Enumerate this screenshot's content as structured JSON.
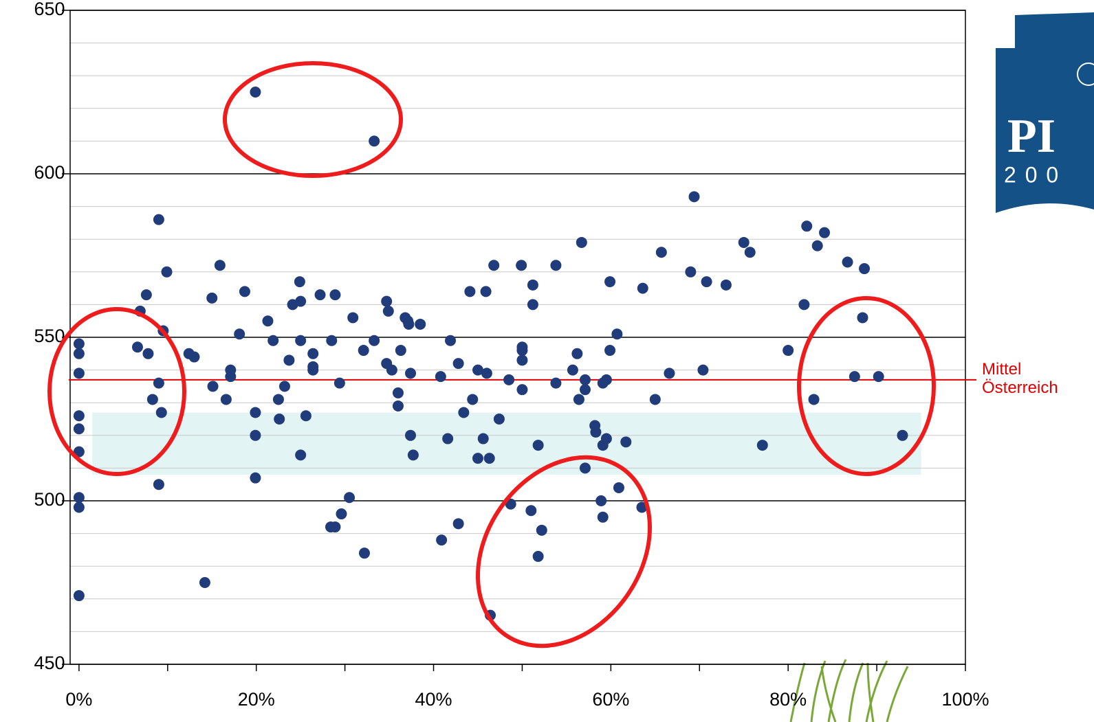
{
  "chart_data": {
    "type": "scatter",
    "x": [
      19.9,
      33.3,
      0,
      0,
      0,
      0,
      0,
      0,
      0,
      0,
      0,
      6.9,
      6.6,
      7.6,
      7.8,
      8.3,
      9.0,
      9.0,
      9.3,
      9.5,
      9.9,
      9.0,
      12.4,
      13.0,
      14.2,
      15.0,
      15.1,
      15.9,
      16.6,
      17.1,
      17.1,
      18.1,
      18.7,
      19.9,
      19.9,
      19.9,
      21.3,
      21.9,
      22.5,
      22.6,
      23.2,
      23.7,
      24.1,
      24.9,
      25.0,
      25.0,
      25.0,
      25.6,
      26.4,
      26.4,
      26.4,
      27.2,
      28.5,
      28.9,
      29.4,
      28.4,
      28.9,
      29.6,
      30.5,
      30.9,
      32.1,
      32.2,
      33.3,
      34.7,
      34.7,
      34.9,
      35.3,
      36.0,
      36.0,
      36.3,
      36.8,
      37.1,
      37.2,
      37.4,
      37.4,
      37.7,
      38.5,
      40.8,
      40.9,
      41.6,
      41.9,
      42.8,
      42.8,
      43.4,
      44.1,
      44.4,
      45.0,
      45.0,
      45.6,
      45.9,
      46.0,
      46.3,
      46.4,
      46.8,
      47.4,
      48.5,
      48.7,
      49.9,
      50.0,
      50.0,
      50.0,
      50.0,
      51.0,
      51.2,
      51.2,
      51.8,
      51.8,
      52.2,
      53.8,
      53.8,
      55.7,
      56.2,
      56.4,
      56.7,
      57.1,
      57.1,
      57.1,
      58.2,
      58.3,
      58.9,
      59.1,
      59.1,
      59.1,
      59.5,
      59.5,
      59.9,
      59.9,
      60.7,
      60.9,
      61.7,
      63.6,
      63.5,
      65.0,
      65.7,
      66.6,
      69.0,
      69.4,
      70.4,
      70.8,
      73.0,
      75.0,
      75.7,
      77.1,
      80.0,
      81.8,
      82.1,
      82.9,
      83.3,
      84.1,
      86.7,
      87.5,
      88.4,
      88.6,
      90.2,
      92.9
    ],
    "values": [
      625,
      610,
      548,
      545,
      539,
      526,
      522,
      515,
      501,
      498,
      471,
      558,
      547,
      563,
      545,
      531,
      586,
      536,
      527,
      552,
      570,
      505,
      545,
      544,
      475,
      562,
      535,
      572,
      531,
      540,
      538,
      551,
      564,
      527,
      520,
      507,
      555,
      549,
      531,
      525,
      535,
      543,
      560,
      567,
      561,
      549,
      514,
      526,
      545,
      541,
      540,
      563,
      549,
      563,
      536,
      492,
      492,
      496,
      501,
      556,
      546,
      484,
      549,
      561,
      542,
      558,
      540,
      533,
      529,
      546,
      556,
      555,
      554,
      539,
      520,
      514,
      554,
      538,
      488,
      519,
      549,
      542,
      493,
      527,
      564,
      531,
      540,
      513,
      519,
      564,
      539,
      513,
      465,
      572,
      525,
      537,
      499,
      572,
      547,
      546,
      543,
      534,
      497,
      566,
      560,
      517,
      483,
      491,
      572,
      536,
      540,
      545,
      531,
      579,
      537,
      534,
      510,
      523,
      521,
      500,
      517,
      536,
      495,
      537,
      519,
      567,
      546,
      551,
      504,
      518,
      565,
      498,
      531,
      576,
      539,
      570,
      593,
      540,
      567,
      566,
      579,
      576,
      517,
      546,
      560,
      584,
      531,
      578,
      582,
      573,
      538,
      556,
      571,
      538,
      520
    ],
    "color": "#213c7a",
    "xlim": [
      -1,
      100
    ],
    "ylim": [
      450,
      650
    ],
    "xticks": [
      {
        "value": 0,
        "label": "0%"
      },
      {
        "value": 20,
        "label": "20%"
      },
      {
        "value": 40,
        "label": "40%"
      },
      {
        "value": 60,
        "label": "60%"
      },
      {
        "value": 80,
        "label": "80%"
      },
      {
        "value": 100,
        "label": "100%"
      }
    ],
    "xminorticks": [
      10,
      30,
      50,
      70,
      90
    ],
    "yticks": [
      450,
      500,
      550,
      600,
      650
    ],
    "yminorticks": [
      460,
      470,
      480,
      490,
      510,
      520,
      530,
      540,
      560,
      570,
      580,
      590,
      610,
      620,
      630,
      640
    ],
    "grid": true,
    "mean_line": {
      "value": 537,
      "label": [
        "Mittel",
        "Österreich"
      ],
      "color": "#e00000"
    },
    "band": {
      "xlim": [
        1.5,
        95
      ],
      "ylim": [
        508,
        527
      ],
      "color": "#e3f4f4"
    }
  },
  "logo": {
    "text": "PI",
    "year": "2 0 0"
  }
}
